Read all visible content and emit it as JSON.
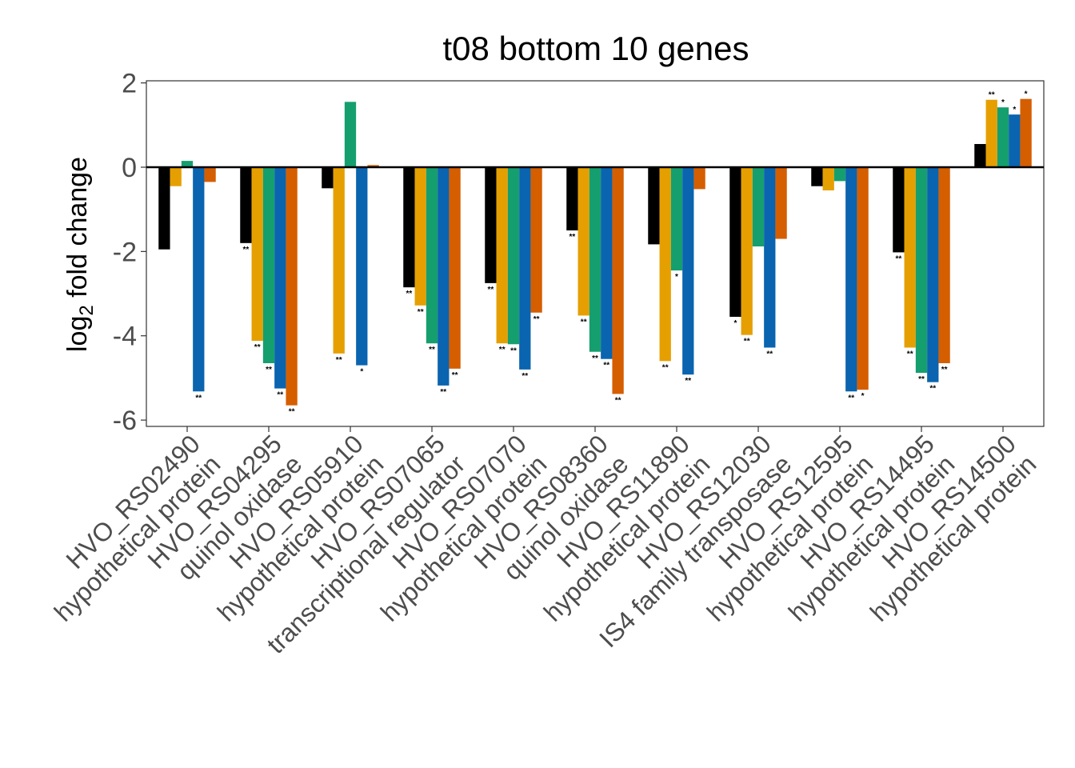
{
  "chart_data": {
    "type": "bar",
    "title": "t08 bottom 10 genes",
    "ylabel_main": "log",
    "ylabel_sub": "2",
    "ylabel_rest": " fold change",
    "ylim": [
      -6.15,
      2.05
    ],
    "yticks": [
      2,
      0,
      -2,
      -4,
      -6
    ],
    "ytick_labels": [
      "2",
      "0",
      "-2",
      "-4",
      "-6"
    ],
    "grid": false,
    "legend": "none",
    "categories": [
      {
        "id": "HVO_RS02490",
        "desc": "hypothetical protein"
      },
      {
        "id": "HVO_RS04295",
        "desc": "quinol oxidase"
      },
      {
        "id": "HVO_RS05910",
        "desc": "hypothetical protein"
      },
      {
        "id": "HVO_RS07065",
        "desc": "transcriptional regulator"
      },
      {
        "id": "HVO_RS07070",
        "desc": "hypothetical protein"
      },
      {
        "id": "HVO_RS08360",
        "desc": "quinol oxidase"
      },
      {
        "id": "HVO_RS11890",
        "desc": "hypothetical protein"
      },
      {
        "id": "HVO_RS12030",
        "desc": "IS4 family transposase"
      },
      {
        "id": "HVO_RS12595",
        "desc": "hypothetical protein"
      },
      {
        "id": "HVO_RS14495",
        "desc": "hypothetical protein"
      },
      {
        "id": "HVO_RS14500",
        "desc": "hypothetical protein"
      }
    ],
    "series_colors": [
      "#000000",
      "#E69F00",
      "#159F6E",
      "#0A64AF",
      "#D55E00"
    ],
    "series": [
      {
        "values": [
          -1.95,
          -1.8,
          -0.5,
          -2.85,
          -2.75,
          -1.5,
          -1.83,
          -3.55,
          -0.45,
          -2.02,
          0.55
        ],
        "sig": [
          "",
          "**",
          "",
          "**",
          "**",
          "**",
          "",
          "*",
          "",
          "**",
          ""
        ]
      },
      {
        "values": [
          -0.45,
          -4.12,
          -4.42,
          -3.28,
          -4.18,
          -3.52,
          -4.6,
          -3.98,
          -0.55,
          -4.28,
          1.6
        ],
        "sig": [
          "",
          "**",
          "**",
          "**",
          "**",
          "**",
          "**",
          "**",
          "",
          "**",
          "**"
        ]
      },
      {
        "values": [
          0.15,
          -4.65,
          1.55,
          -4.18,
          -4.2,
          -4.38,
          -2.45,
          -1.88,
          -0.33,
          -4.88,
          1.42
        ],
        "sig": [
          "",
          "**",
          "",
          "**",
          "**",
          "**",
          "*",
          "",
          "",
          "**",
          "*"
        ]
      },
      {
        "values": [
          -5.32,
          -5.25,
          -4.7,
          -5.18,
          -4.8,
          -4.55,
          -4.92,
          -4.28,
          -5.32,
          -5.1,
          1.25
        ],
        "sig": [
          "**",
          "**",
          "*",
          "**",
          "**",
          "**",
          "**",
          "**",
          "**",
          "**",
          "*"
        ]
      },
      {
        "values": [
          -0.35,
          -5.65,
          0.05,
          -4.78,
          -3.45,
          -5.38,
          -0.52,
          -1.7,
          -5.28,
          -4.65,
          1.62
        ],
        "sig": [
          "",
          "**",
          "",
          "**",
          "**",
          "**",
          "",
          "",
          "*",
          "**",
          "*"
        ]
      }
    ]
  }
}
